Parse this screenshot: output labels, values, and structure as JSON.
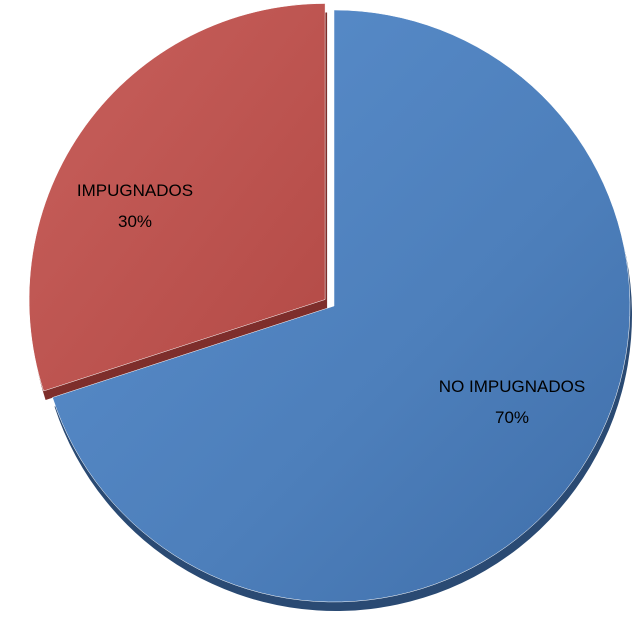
{
  "chart_data": {
    "type": "pie",
    "title": "",
    "categories": [
      "NO IMPUGNADOS",
      "IMPUGNADOS"
    ],
    "values": [
      70,
      30
    ],
    "labels": [
      {
        "name": "NO IMPUGNADOS",
        "percent": "70%"
      },
      {
        "name": "IMPUGNADOS",
        "percent": "30%"
      }
    ],
    "colors": [
      "#4F81BD",
      "#C0504D"
    ],
    "exploded": "IMPUGNADOS",
    "legend": "none"
  }
}
